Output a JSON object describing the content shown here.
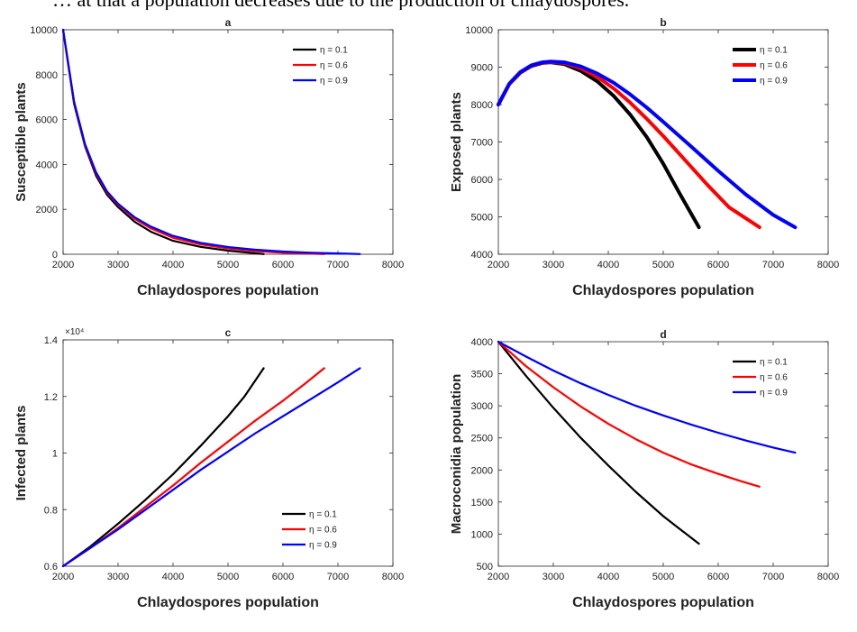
{
  "page": {
    "header_text": "… at that a population decreases due to the production of chlaydospores."
  },
  "chart_data": [
    {
      "type": "line",
      "title": "a",
      "xlabel": "Chlaydospores population",
      "ylabel": "Susceptible plants",
      "xlim": [
        2000,
        8000
      ],
      "ylim": [
        0,
        10000
      ],
      "xticks": [
        2000,
        3000,
        4000,
        5000,
        6000,
        7000,
        8000
      ],
      "yticks": [
        0,
        2000,
        4000,
        6000,
        8000,
        10000
      ],
      "ytick_labels": [
        "0",
        "2000",
        "4000",
        "6000",
        "8000",
        "10000"
      ],
      "y_exponent": "",
      "legend_position": "top-right",
      "line_width": 2.2,
      "series": [
        {
          "name": "η = 0.1",
          "color": "#000000",
          "x": [
            2000,
            2200,
            2400,
            2600,
            2800,
            3000,
            3300,
            3600,
            4000,
            4500,
            5000,
            5650
          ],
          "y": [
            10000,
            6700,
            4800,
            3500,
            2650,
            2100,
            1450,
            1000,
            600,
            330,
            160,
            10
          ]
        },
        {
          "name": "η = 0.6",
          "color": "#ff0000",
          "x": [
            2000,
            2200,
            2400,
            2600,
            2800,
            3000,
            3300,
            3600,
            4000,
            4500,
            5000,
            5500,
            6000,
            6750
          ],
          "y": [
            10000,
            6750,
            4850,
            3600,
            2750,
            2200,
            1580,
            1150,
            730,
            440,
            260,
            140,
            70,
            10
          ]
        },
        {
          "name": "η = 0.9",
          "color": "#0000ff",
          "x": [
            2000,
            2200,
            2400,
            2600,
            2800,
            3000,
            3300,
            3600,
            4000,
            4500,
            5000,
            5500,
            6000,
            6500,
            7000,
            7400
          ],
          "y": [
            10000,
            6800,
            4900,
            3650,
            2800,
            2250,
            1650,
            1230,
            820,
            510,
            320,
            200,
            120,
            70,
            35,
            10
          ]
        }
      ]
    },
    {
      "type": "line",
      "title": "b",
      "xlabel": "Chlaydospores population",
      "ylabel": "Exposed plants",
      "xlim": [
        2000,
        8000
      ],
      "ylim": [
        4000,
        10000
      ],
      "xticks": [
        2000,
        3000,
        4000,
        5000,
        6000,
        7000,
        8000
      ],
      "yticks": [
        4000,
        5000,
        6000,
        7000,
        8000,
        9000,
        10000
      ],
      "ytick_labels": [
        "4000",
        "5000",
        "6000",
        "7000",
        "8000",
        "9000",
        "10000"
      ],
      "y_exponent": "",
      "legend_position": "top-right",
      "line_width": 4,
      "series": [
        {
          "name": "η = 0.1",
          "color": "#000000",
          "x": [
            2000,
            2200,
            2400,
            2600,
            2800,
            2950,
            3200,
            3500,
            3800,
            4100,
            4400,
            4700,
            5000,
            5300,
            5650
          ],
          "y": [
            8000,
            8550,
            8850,
            9030,
            9110,
            9130,
            9080,
            8900,
            8620,
            8230,
            7730,
            7130,
            6420,
            5620,
            4720
          ]
        },
        {
          "name": "η = 0.6",
          "color": "#ff0000",
          "x": [
            2000,
            2200,
            2400,
            2600,
            2800,
            2950,
            3200,
            3500,
            3800,
            4100,
            4400,
            4700,
            5000,
            5400,
            5800,
            6200,
            6750
          ],
          "y": [
            8000,
            8550,
            8860,
            9040,
            9120,
            9140,
            9110,
            8970,
            8740,
            8430,
            8050,
            7620,
            7160,
            6510,
            5860,
            5250,
            4720
          ]
        },
        {
          "name": "η = 0.9",
          "color": "#0000ff",
          "x": [
            2000,
            2200,
            2400,
            2600,
            2800,
            2950,
            3200,
            3500,
            3800,
            4100,
            4400,
            4700,
            5000,
            5500,
            6000,
            6500,
            7000,
            7400
          ],
          "y": [
            8000,
            8560,
            8870,
            9050,
            9130,
            9150,
            9130,
            9020,
            8830,
            8580,
            8270,
            7920,
            7540,
            6890,
            6230,
            5600,
            5050,
            4720
          ]
        }
      ]
    },
    {
      "type": "line",
      "title": "c",
      "xlabel": "Chlaydospores population",
      "ylabel": "Infected plants",
      "xlim": [
        2000,
        8000
      ],
      "ylim": [
        6000,
        14000
      ],
      "xticks": [
        2000,
        3000,
        4000,
        5000,
        6000,
        7000,
        8000
      ],
      "yticks": [
        6000,
        8000,
        10000,
        12000,
        14000
      ],
      "ytick_labels": [
        "0.6",
        "0.8",
        "1",
        "1.2",
        "1.4"
      ],
      "y_exponent": "×10⁴",
      "legend_position": "bottom-right",
      "line_width": 2.2,
      "series": [
        {
          "name": "η = 0.1",
          "color": "#000000",
          "x": [
            2000,
            2500,
            3000,
            3500,
            4000,
            4500,
            5000,
            5300,
            5650
          ],
          "y": [
            6000,
            6700,
            7500,
            8350,
            9250,
            10250,
            11300,
            12000,
            13000
          ]
        },
        {
          "name": "η = 0.6",
          "color": "#ff0000",
          "x": [
            2000,
            2500,
            3000,
            3500,
            4000,
            4500,
            5000,
            5500,
            6000,
            6400,
            6750
          ],
          "y": [
            6000,
            6650,
            7350,
            8100,
            8850,
            9650,
            10400,
            11150,
            11850,
            12450,
            13000
          ]
        },
        {
          "name": "η = 0.9",
          "color": "#0000ff",
          "x": [
            2000,
            2500,
            3000,
            3500,
            4000,
            4500,
            5000,
            5500,
            6000,
            6500,
            7000,
            7400
          ],
          "y": [
            6000,
            6650,
            7300,
            8000,
            8700,
            9400,
            10050,
            10700,
            11300,
            11900,
            12500,
            13000
          ]
        }
      ]
    },
    {
      "type": "line",
      "title": "d",
      "xlabel": "Chlaydospores population",
      "ylabel": "Macroconidia population",
      "xlim": [
        2000,
        8000
      ],
      "ylim": [
        500,
        4000
      ],
      "xticks": [
        2000,
        3000,
        4000,
        5000,
        6000,
        7000,
        8000
      ],
      "yticks": [
        500,
        1000,
        1500,
        2000,
        2500,
        3000,
        3500,
        4000
      ],
      "ytick_labels": [
        "500",
        "1000",
        "1500",
        "2000",
        "2500",
        "3000",
        "3500",
        "4000"
      ],
      "y_exponent": "",
      "legend_position": "top-right",
      "line_width": 2.2,
      "series": [
        {
          "name": "η = 0.1",
          "color": "#000000",
          "x": [
            2000,
            2500,
            3000,
            3500,
            4000,
            4500,
            5000,
            5300,
            5650
          ],
          "y": [
            4000,
            3470,
            2970,
            2500,
            2070,
            1660,
            1280,
            1080,
            850
          ]
        },
        {
          "name": "η = 0.6",
          "color": "#ff0000",
          "x": [
            2000,
            2500,
            3000,
            3500,
            4000,
            4500,
            5000,
            5500,
            6000,
            6400,
            6750
          ],
          "y": [
            4000,
            3620,
            3290,
            2990,
            2720,
            2480,
            2270,
            2090,
            1940,
            1830,
            1740
          ]
        },
        {
          "name": "η = 0.9",
          "color": "#0000ff",
          "x": [
            2000,
            2500,
            3000,
            3500,
            4000,
            4500,
            5000,
            5500,
            6000,
            6500,
            7000,
            7400
          ],
          "y": [
            4000,
            3770,
            3550,
            3350,
            3170,
            3000,
            2850,
            2710,
            2580,
            2460,
            2350,
            2270
          ]
        }
      ]
    }
  ]
}
